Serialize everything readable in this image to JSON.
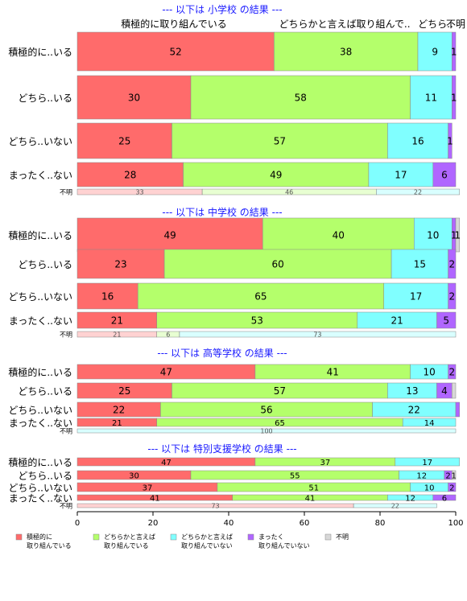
{
  "chart_data": {
    "type": "bar",
    "orientation": "horizontal",
    "stacked": true,
    "normalized_percent": true,
    "xlim": [
      0,
      100
    ],
    "x_ticks": [
      "0",
      "20",
      "40",
      "60",
      "80",
      "100"
    ],
    "series_colors": [
      "#ff6b6b",
      "#b4ff6b",
      "#80ffff",
      "#b066ff",
      "#d8d8d8"
    ],
    "column_headers": [
      "積極的に取り組んでいる",
      "どちらかと言えば取り組んで..",
      "どちら..",
      "不明"
    ],
    "legend": {
      "placement": "bottom",
      "items": [
        {
          "label1": "積極的に",
          "label2": "取り組んでいる"
        },
        {
          "label1": "どちらかと言えば",
          "label2": "取り組んでいる"
        },
        {
          "label1": "どちらかと言えば",
          "label2": "取り組んでいない"
        },
        {
          "label1": "まったく",
          "label2": "取り組んでいない"
        },
        {
          "label1": "不明",
          "label2": ""
        }
      ]
    },
    "panels": [
      {
        "title": "--- 以下は 小学校 の結果 ---",
        "rows": [
          {
            "category": "積極的に..いる",
            "values": [
              52,
              38,
              9,
              1,
              0
            ],
            "labels": [
              "52",
              "38",
              "9",
              "1",
              ""
            ]
          },
          {
            "category": "どちら..いる",
            "values": [
              30,
              58,
              11,
              1,
              0
            ],
            "labels": [
              "30",
              "58",
              "11",
              "1",
              ""
            ]
          },
          {
            "category": "どちら..いない",
            "values": [
              25,
              57,
              16,
              1,
              0
            ],
            "labels": [
              "25",
              "57",
              "16",
              "1",
              ""
            ]
          },
          {
            "category": "まったく..ない",
            "values": [
              28,
              49,
              17,
              6,
              0
            ],
            "labels": [
              "28",
              "49",
              "17",
              "6",
              ""
            ]
          },
          {
            "category": "不明",
            "values": [
              33,
              46,
              22,
              0,
              0
            ],
            "labels": [
              "33",
              "46",
              "22",
              "",
              ""
            ]
          }
        ]
      },
      {
        "title": "--- 以下は 中学校 の結果 ---",
        "rows": [
          {
            "category": "積極的に..いる",
            "values": [
              49,
              40,
              10,
              1,
              1
            ],
            "labels": [
              "49",
              "40",
              "10",
              "1",
              "1"
            ]
          },
          {
            "category": "どちら..いる",
            "values": [
              23,
              60,
              15,
              2,
              0
            ],
            "labels": [
              "23",
              "60",
              "15",
              "2",
              ""
            ]
          },
          {
            "category": "どちら..いない",
            "values": [
              16,
              65,
              17,
              2,
              0
            ],
            "labels": [
              "16",
              "65",
              "17",
              "2",
              ""
            ]
          },
          {
            "category": "まったく..ない",
            "values": [
              21,
              53,
              21,
              5,
              0
            ],
            "labels": [
              "21",
              "53",
              "21",
              "5",
              ""
            ]
          },
          {
            "category": "不明",
            "values": [
              21,
              6,
              73,
              0,
              0
            ],
            "labels": [
              "21",
              "6",
              "73",
              "",
              ""
            ]
          }
        ]
      },
      {
        "title": "--- 以下は 高等学校 の結果 ---",
        "rows": [
          {
            "category": "積極的に..いる",
            "values": [
              47,
              41,
              10,
              2,
              0
            ],
            "labels": [
              "47",
              "41",
              "10",
              "2",
              ""
            ]
          },
          {
            "category": "どちら..いる",
            "values": [
              25,
              57,
              13,
              4,
              1
            ],
            "labels": [
              "25",
              "57",
              "13",
              "4",
              ""
            ]
          },
          {
            "category": "どちら..いない",
            "values": [
              22,
              56,
              22,
              1,
              0
            ],
            "labels": [
              "22",
              "56",
              "22",
              "",
              ""
            ]
          },
          {
            "category": "まったく..ない",
            "values": [
              21,
              65,
              14,
              0,
              0
            ],
            "labels": [
              "21",
              "65",
              "14",
              "",
              ""
            ]
          },
          {
            "category": "不明",
            "values": [
              0,
              0,
              100,
              0,
              0
            ],
            "labels": [
              "",
              "",
              "100",
              "",
              ""
            ]
          }
        ]
      },
      {
        "title": "--- 以下は 特別支援学校 の結果 ---",
        "rows": [
          {
            "category": "積極的に..いる",
            "values": [
              47,
              37,
              17,
              0,
              0
            ],
            "labels": [
              "47",
              "37",
              "17",
              "",
              ""
            ]
          },
          {
            "category": "どちら..いる",
            "values": [
              30,
              55,
              12,
              2,
              1
            ],
            "labels": [
              "30",
              "55",
              "12",
              "2",
              "1"
            ]
          },
          {
            "category": "どちら..いない",
            "values": [
              37,
              51,
              10,
              2,
              0
            ],
            "labels": [
              "37",
              "51",
              "10",
              "2",
              ""
            ]
          },
          {
            "category": "まったく..ない",
            "values": [
              41,
              41,
              12,
              6,
              0
            ],
            "labels": [
              "41",
              "41",
              "12",
              "6",
              ""
            ]
          },
          {
            "category": "不明",
            "values": [
              73,
              0,
              22,
              0,
              0
            ],
            "labels": [
              "73",
              "",
              "22",
              "",
              ""
            ]
          }
        ]
      }
    ]
  }
}
